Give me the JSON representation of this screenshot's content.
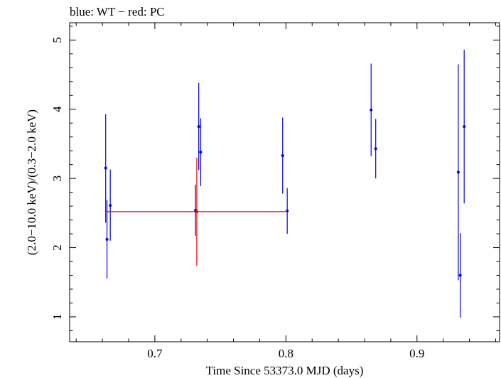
{
  "chart_data": {
    "type": "scatter",
    "title": "blue: WT − red: PC",
    "xlabel": "Time Since 53373.0 MJD (days)",
    "ylabel": "(2.0−10.0 keV)/(0.3−2.0 keV)",
    "xlim": [
      0.635,
      0.963
    ],
    "ylim": [
      0.64,
      5.25
    ],
    "xticks": [
      {
        "value": 0.7,
        "label": "0.7"
      },
      {
        "value": 0.8,
        "label": "0.8"
      },
      {
        "value": 0.9,
        "label": "0.9"
      }
    ],
    "yticks": [
      {
        "value": 1,
        "label": "1"
      },
      {
        "value": 2,
        "label": "2"
      },
      {
        "value": 3,
        "label": "3"
      },
      {
        "value": 4,
        "label": "4"
      },
      {
        "value": 5,
        "label": "5"
      }
    ],
    "series": [
      {
        "color": "#0000ee",
        "points": [
          {
            "x": 0.6625,
            "y": 3.15,
            "ylo": 2.36,
            "yhi": 3.93
          },
          {
            "x": 0.6635,
            "y": 2.12,
            "ylo": 1.55,
            "yhi": 2.69
          },
          {
            "x": 0.666,
            "y": 2.61,
            "ylo": 2.1,
            "yhi": 3.13
          },
          {
            "x": 0.731,
            "y": 2.54,
            "ylo": 2.17,
            "yhi": 2.91
          },
          {
            "x": 0.7335,
            "y": 3.75,
            "ylo": 3.12,
            "yhi": 4.38
          },
          {
            "x": 0.735,
            "y": 3.38,
            "ylo": 2.89,
            "yhi": 3.87
          },
          {
            "x": 0.7975,
            "y": 3.33,
            "ylo": 2.78,
            "yhi": 3.88
          },
          {
            "x": 0.801,
            "y": 2.53,
            "ylo": 2.2,
            "yhi": 2.86
          },
          {
            "x": 0.865,
            "y": 3.99,
            "ylo": 3.32,
            "yhi": 4.66
          },
          {
            "x": 0.8685,
            "y": 3.43,
            "ylo": 3.0,
            "yhi": 3.86
          },
          {
            "x": 0.9315,
            "y": 3.09,
            "ylo": 1.53,
            "yhi": 4.65
          },
          {
            "x": 0.933,
            "y": 1.6,
            "ylo": 0.99,
            "yhi": 2.21
          },
          {
            "x": 0.936,
            "y": 3.75,
            "ylo": 2.64,
            "yhi": 4.86
          }
        ]
      },
      {
        "color": "#ee0000",
        "points": [
          {
            "x": 0.732,
            "y": 2.52,
            "ylo": 1.74,
            "yhi": 3.3,
            "xlo": 0.6625,
            "xhi": 0.801
          }
        ]
      }
    ],
    "grid": false,
    "legend": "none"
  }
}
